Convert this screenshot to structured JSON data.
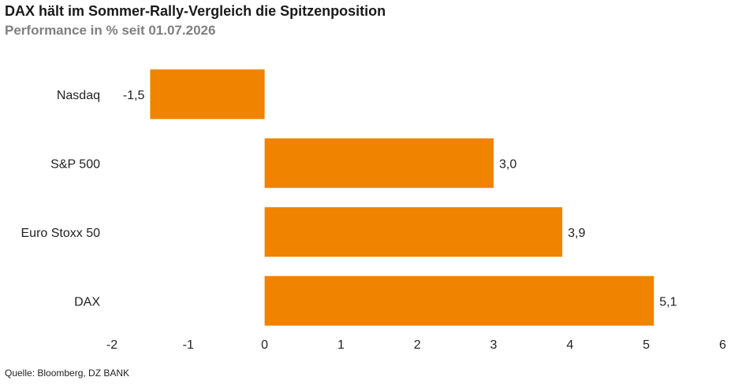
{
  "header": {
    "title": "DAX hält im Sommer-Rally-Vergleich die Spitzenposition",
    "subtitle": "Performance in % seit 01.07.2026"
  },
  "footer": {
    "source": "Quelle: Bloomberg, DZ BANK"
  },
  "colors": {
    "bar": "#F08300",
    "text": "#222222",
    "subtitle": "#7F7F7F"
  },
  "chart_data": {
    "type": "bar",
    "orientation": "horizontal",
    "categories": [
      "Nasdaq",
      "S&P 500",
      "Euro Stoxx 50",
      "DAX"
    ],
    "values": [
      -1.5,
      3.0,
      3.9,
      5.1
    ],
    "value_labels": [
      "-1,5",
      "3,0",
      "3,9",
      "5,1"
    ],
    "xlim": [
      -2,
      6
    ],
    "xticks": [
      -2,
      -1,
      0,
      1,
      2,
      3,
      4,
      5,
      6
    ],
    "grid": false,
    "legend": false
  }
}
